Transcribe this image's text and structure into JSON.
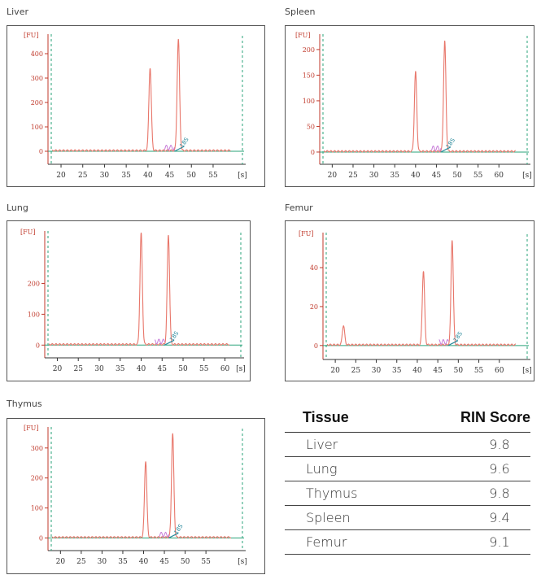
{
  "chart_data": [
    {
      "type": "line",
      "title": "Liver",
      "ylabel": "[FU]",
      "xlabel": "[s]",
      "y_ticks": [
        0,
        100,
        200,
        300,
        400
      ],
      "x_ticks": [
        20,
        25,
        30,
        35,
        40,
        45,
        50,
        55
      ],
      "ylim": [
        -20,
        480
      ],
      "xlim": [
        17,
        61
      ],
      "peaks": [
        {
          "x": 40.5,
          "y": 340
        },
        {
          "x": 47,
          "y": 455
        }
      ],
      "marker_label": "18S"
    },
    {
      "type": "line",
      "title": "Spleen",
      "ylabel": "[FU]",
      "xlabel": "[s]",
      "y_ticks": [
        0,
        50,
        100,
        150,
        200
      ],
      "x_ticks": [
        20,
        25,
        30,
        35,
        40,
        45,
        50,
        55,
        60
      ],
      "ylim": [
        -8,
        230
      ],
      "xlim": [
        17,
        66
      ],
      "peaks": [
        {
          "x": 40,
          "y": 155
        },
        {
          "x": 47,
          "y": 215
        }
      ],
      "marker_label": "18S"
    },
    {
      "type": "line",
      "title": "Lung",
      "ylabel": "[FU]",
      "xlabel": "[s]",
      "y_ticks": [
        0,
        100,
        200
      ],
      "x_ticks": [
        20,
        25,
        30,
        35,
        40,
        45,
        50,
        55,
        60
      ],
      "ylim": [
        -15,
        370
      ],
      "xlim": [
        17,
        63
      ],
      "peaks": [
        {
          "x": 40,
          "y": 360
        },
        {
          "x": 46.5,
          "y": 355
        }
      ],
      "marker_label": "18S"
    },
    {
      "type": "line",
      "title": "Femur",
      "ylabel": "[FU]",
      "xlabel": "[s]",
      "y_ticks": [
        0,
        20,
        40
      ],
      "x_ticks": [
        20,
        25,
        30,
        35,
        40,
        45,
        50,
        55,
        60
      ],
      "ylim": [
        -3,
        58
      ],
      "xlim": [
        17,
        66
      ],
      "peaks": [
        {
          "x": 22,
          "y": 10
        },
        {
          "x": 41.5,
          "y": 38
        },
        {
          "x": 48.5,
          "y": 54
        }
      ],
      "marker_label": "18S"
    },
    {
      "type": "line",
      "title": "Thymus",
      "ylabel": "[FU]",
      "xlabel": "[s]",
      "y_ticks": [
        0,
        100,
        200,
        300
      ],
      "x_ticks": [
        20,
        25,
        30,
        35,
        40,
        45,
        50,
        55
      ],
      "ylim": [
        -15,
        370
      ],
      "xlim": [
        17,
        63
      ],
      "peaks": [
        {
          "x": 40.5,
          "y": 255
        },
        {
          "x": 47,
          "y": 345
        }
      ],
      "marker_label": "18S"
    },
    {
      "type": "table",
      "columns": [
        "Tissue",
        "RIN Score"
      ],
      "rows": [
        [
          "Liver",
          "9.8"
        ],
        [
          "Lung",
          "9.6"
        ],
        [
          "Thymus",
          "9.8"
        ],
        [
          "Spleen",
          "9.4"
        ],
        [
          "Femur",
          "9.1"
        ]
      ]
    }
  ],
  "colors": {
    "trace": "#e8766a",
    "baseline": "#2aa37a",
    "marker": "#2a8a9c",
    "secondary": "#c77bd8",
    "axis_text": "#c0392b"
  }
}
